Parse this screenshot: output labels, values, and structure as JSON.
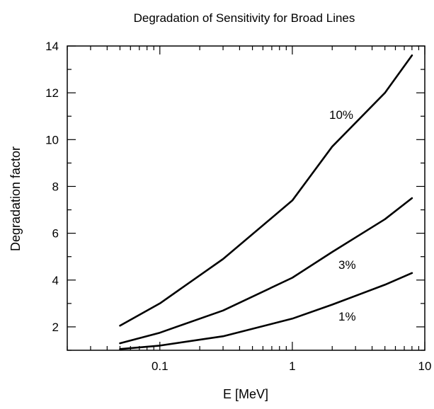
{
  "chart_data": {
    "type": "line",
    "title": "Degradation of Sensitivity for Broad Lines",
    "xlabel": "E  [MeV]",
    "ylabel": "Degradation factor",
    "xscale": "log",
    "xlim": [
      0.02,
      10
    ],
    "ylim": [
      1,
      14
    ],
    "grid": false,
    "legend": "inline labels",
    "xticks": [
      {
        "value": 0.1,
        "label": "0.1"
      },
      {
        "value": 1,
        "label": "1"
      },
      {
        "value": 10,
        "label": "10"
      }
    ],
    "yticks": [
      2,
      4,
      6,
      8,
      10,
      12,
      14
    ],
    "series": [
      {
        "name": "10%",
        "x": [
          0.05,
          0.1,
          0.3,
          1,
          2,
          5,
          8
        ],
        "y": [
          2.05,
          3.0,
          4.9,
          7.4,
          9.7,
          12.0,
          13.6
        ]
      },
      {
        "name": "3%",
        "x": [
          0.05,
          0.1,
          0.3,
          1,
          2,
          5,
          8
        ],
        "y": [
          1.3,
          1.75,
          2.7,
          4.1,
          5.2,
          6.6,
          7.5
        ]
      },
      {
        "name": "1%",
        "x": [
          0.05,
          0.1,
          0.3,
          1,
          2,
          5,
          8
        ],
        "y": [
          1.05,
          1.2,
          1.6,
          2.35,
          2.95,
          3.8,
          4.3
        ]
      }
    ]
  }
}
